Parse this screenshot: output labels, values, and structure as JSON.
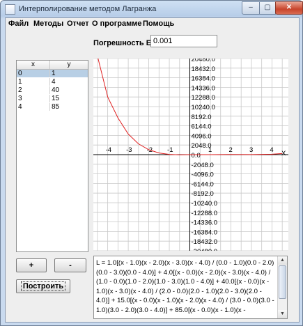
{
  "window": {
    "title": "Интерполирование методом Лагранжа"
  },
  "controls": {
    "minimize": "–",
    "maximize": "▢",
    "close": "✕"
  },
  "menu": [
    "Файл",
    "Методы",
    "Отчет",
    "О программе",
    "Помощь"
  ],
  "error_field": {
    "label": "Погрешность E =",
    "value": "0.001"
  },
  "table": {
    "headers": [
      "x",
      "y"
    ],
    "rows": [
      [
        "0",
        "1"
      ],
      [
        "1",
        "4"
      ],
      [
        "2",
        "40"
      ],
      [
        "3",
        "15"
      ],
      [
        "4",
        "85"
      ]
    ],
    "selected_row": 0
  },
  "buttons": {
    "add": "+",
    "remove": "-",
    "build": "Построить"
  },
  "plot": {
    "y_labels": [
      "20480.0",
      "18432.0",
      "16384.0",
      "14336.0",
      "12288.0",
      "10240.0",
      "8192.0",
      "6144.0",
      "4096.0",
      "2048.0",
      "0.0",
      "-2048.0",
      "-4096.0",
      "-6144.0",
      "-8192.0",
      "-10240.0",
      "-12288.0",
      "-14336.0",
      "-16384.0",
      "-18432.0",
      "-20480.0"
    ],
    "x_labels": [
      "-4",
      "-3",
      "-2",
      "-1",
      "1",
      "2",
      "3",
      "4"
    ],
    "x_axis_name": "X",
    "curve_color": "#e02020"
  },
  "chart_data": {
    "type": "line",
    "x": [
      -4.5,
      -4,
      -3.5,
      -3,
      -2.5,
      -2,
      -1.5,
      -1,
      -0.5,
      0,
      1,
      2,
      3,
      4,
      4.5
    ],
    "values": [
      21000,
      12288,
      7800,
      4400,
      2300,
      1050,
      350,
      60,
      -50,
      1,
      4,
      40,
      15,
      85,
      240
    ],
    "xlim": [
      -4.7,
      4.8
    ],
    "ylim": [
      -20480,
      20480
    ]
  },
  "formula_text": "L = 1.0[(x - 1.0)(x - 2.0)(x - 3.0)(x - 4.0) / (0.0 - 1.0)(0.0 - 2.0)(0.0 - 3.0)(0.0 - 4.0)] + 4.0[(x - 0.0)(x - 2.0)(x - 3.0)(x - 4.0) / (1.0 - 0.0)(1.0 - 2.0)(1.0 - 3.0)(1.0 - 4.0)] + 40.0[(x - 0.0)(x - 1.0)(x - 3.0)(x - 4.0) / (2.0 - 0.0)(2.0 - 1.0)(2.0 - 3.0)(2.0 - 4.0)] + 15.0[(x - 0.0)(x - 1.0)(x - 2.0)(x - 4.0) / (3.0 - 0.0)(3.0 - 1.0)(3.0 - 2.0)(3.0 - 4.0)] + 85.0[(x - 0.0)(x - 1.0)(x -"
}
